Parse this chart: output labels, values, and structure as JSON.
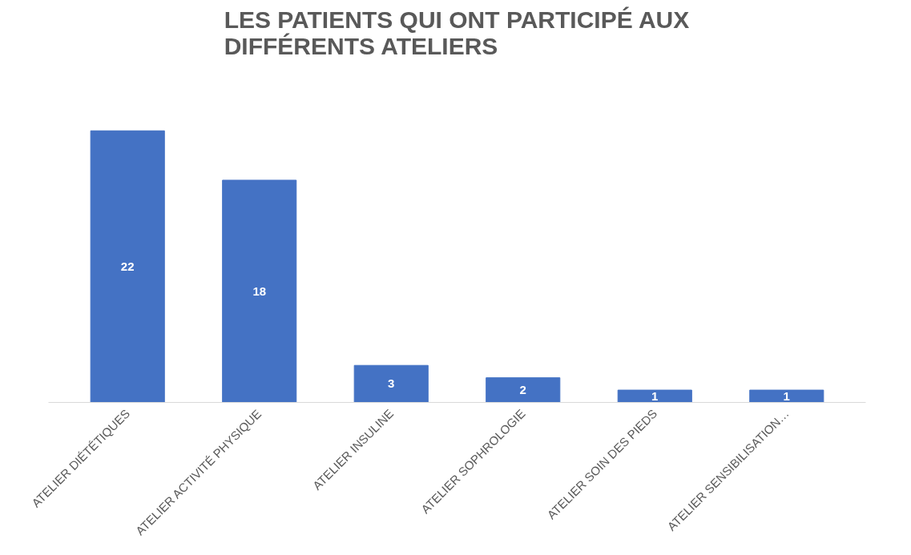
{
  "chart_data": {
    "type": "bar",
    "title": "LES PATIENTS QUI ONT PARTICIPÉ AUX DIFFÉRENTS ATELIERS",
    "categories": [
      "ATELIER DIÉTÉTIQUES",
      "ATELIER ACTIVITÉ PHYSIQUE",
      "ATELIER INSULINE",
      "ATELIER SOPHROLOGIE",
      "ATELIER SOIN DES PIEDS",
      "ATELIER SENSIBILISATION…"
    ],
    "values": [
      22,
      18,
      3,
      2,
      1,
      1
    ],
    "color": "#4472c4",
    "data_labels": true
  }
}
